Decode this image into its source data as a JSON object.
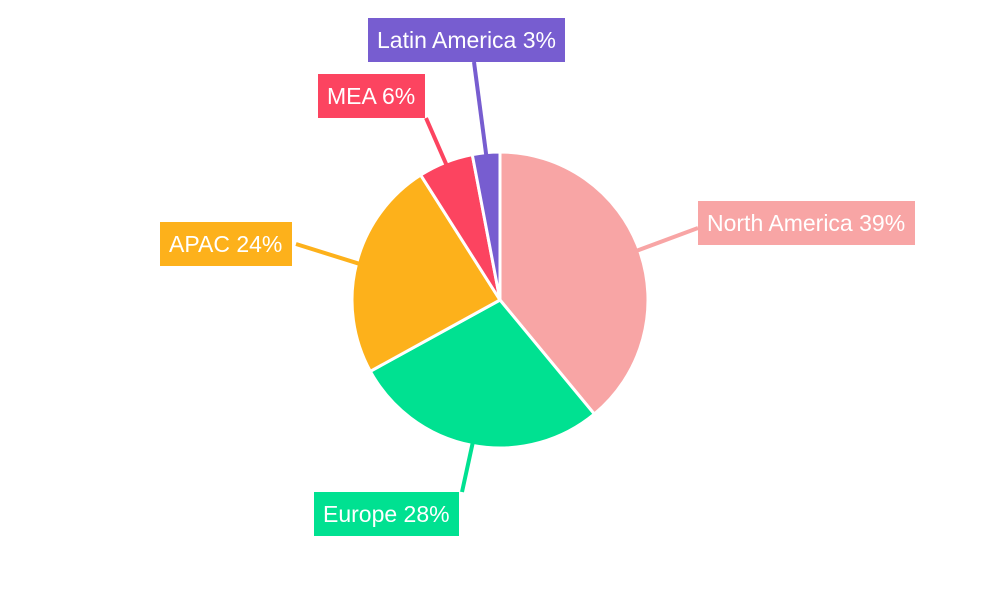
{
  "chart_data": {
    "type": "pie",
    "title": "",
    "start_angle_deg": 0,
    "direction": "clockwise",
    "slices": [
      {
        "label": "North America",
        "value": 39,
        "display": "North America 39%",
        "color": "#F8A5A5"
      },
      {
        "label": "Europe",
        "value": 28,
        "display": "Europe 28%",
        "color": "#00E191"
      },
      {
        "label": "APAC",
        "value": 24,
        "display": "APAC 24%",
        "color": "#FDB11B"
      },
      {
        "label": "MEA",
        "value": 6,
        "display": "MEA 6%",
        "color": "#FC4460"
      },
      {
        "label": "Latin America",
        "value": 3,
        "display": "Latin America 3%",
        "color": "#775DD0"
      }
    ],
    "legend": "none",
    "label_style": "outside-boxed"
  }
}
